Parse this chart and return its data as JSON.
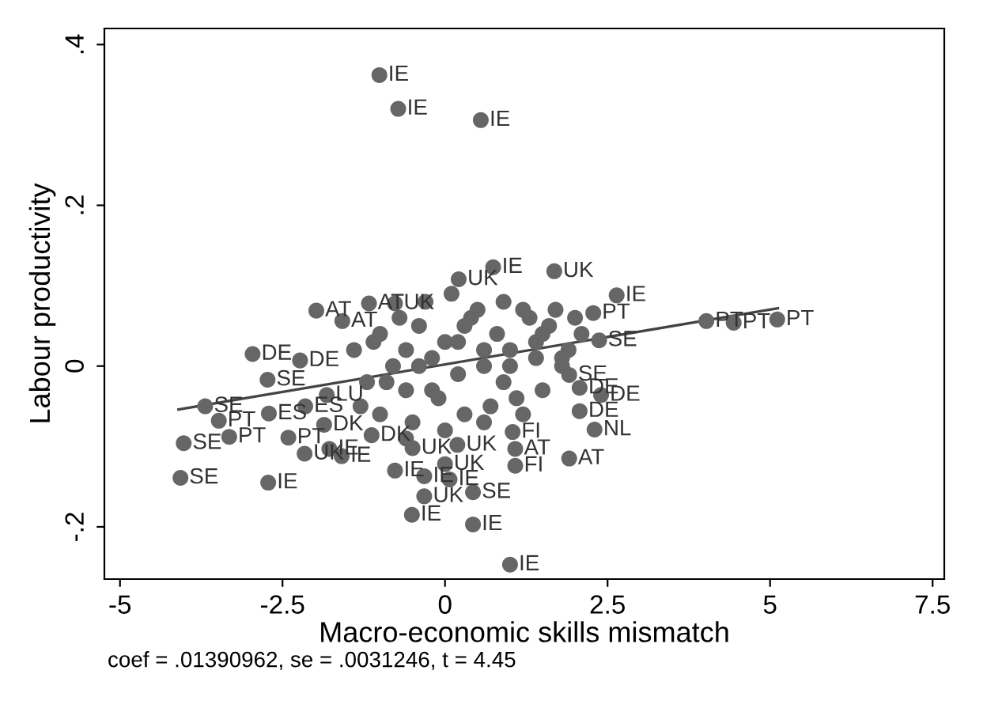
{
  "chart_data": {
    "type": "scatter",
    "xlabel": "Macro-economic skills mismatch",
    "ylabel": "Labour productivity",
    "annotations": [
      "coef = .01390962, se = .0031246, t = 4.45"
    ],
    "xlim": [
      -5.24,
      7.68
    ],
    "ylim": [
      -0.265,
      0.42
    ],
    "xticks": [
      -5,
      -2.5,
      0,
      2.5,
      5,
      7.5
    ],
    "yticks": [
      {
        "value": -0.2,
        "label": "-.2"
      },
      {
        "value": 0,
        "label": "0"
      },
      {
        "value": 0.2,
        "label": ".2"
      },
      {
        "value": 0.4,
        "label": ".4"
      }
    ],
    "grid": false,
    "legend": false,
    "series": [
      {
        "color": "#666666",
        "marker": "circle",
        "x": [
          -1.01,
          -0.72,
          0.55,
          4.02,
          4.44,
          5.11,
          2.37,
          2.64,
          1.68,
          0.74,
          2.28,
          2.07,
          2.07,
          2.3,
          2.4,
          1.91,
          -4.02,
          -4.07,
          -2.72,
          -2.41,
          -2.16,
          -1.78,
          -1.59,
          -1.13,
          -0.5,
          -0.77,
          -0.32,
          0.07,
          0,
          0.19,
          0.43,
          -0.32,
          -0.51,
          0.43,
          1.0,
          1.91,
          1.08,
          1.08,
          1.04,
          -2.96,
          -2.23,
          -2.73,
          -3.69,
          -3.48,
          -3.32,
          -2.71,
          -1.98,
          -1.58,
          -1.17,
          -0.77,
          0.21,
          -1.86,
          -1.82,
          -2.15,
          -1.4,
          -1.2,
          -1.0,
          -0.8,
          -0.6,
          -0.4,
          -0.2,
          0.0,
          0.2,
          0.4,
          0.6,
          0.8,
          1.0,
          1.2,
          1.4,
          1.6,
          1.8,
          2.0,
          -1.3,
          -1.0,
          -0.7,
          -0.5,
          -0.3,
          -0.1,
          0.1,
          0.3,
          0.5,
          0.7,
          0.9,
          1.1,
          1.3,
          1.5,
          1.7,
          1.9,
          2.1,
          -0.9,
          -0.6,
          -0.2,
          0.2,
          0.6,
          1.0,
          1.4,
          1.8,
          -1.1,
          -0.4,
          0.3,
          0.9,
          1.5,
          -0.6,
          0.0,
          0.6,
          1.2
        ],
        "values": [
          0.362,
          0.32,
          0.306,
          0.056,
          0.054,
          0.058,
          0.032,
          0.088,
          0.118,
          0.123,
          0.066,
          -0.027,
          -0.056,
          -0.079,
          -0.036,
          -0.011,
          -0.096,
          -0.139,
          -0.145,
          -0.089,
          -0.109,
          -0.103,
          -0.112,
          -0.086,
          -0.102,
          -0.13,
          -0.137,
          -0.141,
          -0.122,
          -0.098,
          -0.157,
          -0.162,
          -0.185,
          -0.197,
          -0.247,
          -0.115,
          -0.103,
          -0.124,
          -0.082,
          0.015,
          0.007,
          -0.017,
          -0.05,
          -0.068,
          -0.088,
          -0.059,
          0.069,
          0.056,
          0.078,
          0.078,
          0.108,
          -0.073,
          -0.036,
          -0.05,
          0.02,
          -0.02,
          0.04,
          0.0,
          -0.03,
          0.05,
          0.01,
          0.03,
          -0.01,
          0.06,
          0.02,
          0.04,
          0.0,
          0.07,
          0.03,
          0.05,
          0.01,
          0.06,
          -0.05,
          -0.06,
          0.06,
          -0.07,
          0.08,
          -0.04,
          0.09,
          -0.06,
          0.07,
          -0.05,
          0.08,
          -0.04,
          0.06,
          -0.03,
          0.07,
          0.02,
          0.04,
          -0.02,
          0.02,
          -0.03,
          0.03,
          0.0,
          0.02,
          0.01,
          0.0,
          0.03,
          0.0,
          0.05,
          -0.02,
          0.04,
          -0.09,
          -0.08,
          -0.07,
          -0.06
        ],
        "value_labels": [
          "IE",
          "IE",
          "IE",
          "PT",
          "PT",
          "PT",
          "SE",
          "IE",
          "UK",
          "IE",
          "PT",
          "DE",
          "DE",
          "NL",
          "DE",
          "SE",
          "SE",
          "SE",
          "IE",
          "PT",
          "UK",
          "IE",
          "IE",
          "DK",
          "UK",
          "IE",
          "IE",
          "IE",
          "UK",
          "UK",
          "SE",
          "UK",
          "IE",
          "IE",
          "IE",
          "AT",
          "AT",
          "FI",
          "FI",
          "DE",
          "DE",
          "SE",
          "SE",
          "PT",
          "PT",
          "ES",
          "AT",
          "AT",
          "AT",
          "UK",
          "UK",
          "DK",
          "LU",
          "ES",
          null,
          null,
          null,
          null,
          null,
          null,
          null,
          null,
          null,
          null,
          null,
          null,
          null,
          null,
          null,
          null,
          null,
          null,
          null,
          null,
          null,
          null,
          null,
          null,
          null,
          null,
          null,
          null,
          null,
          null,
          null,
          null,
          null,
          null,
          null,
          null,
          null,
          null,
          null,
          null,
          null,
          null,
          null,
          null,
          null,
          null,
          null,
          null,
          null,
          null,
          null,
          null
        ]
      },
      {
        "type": "line",
        "color": "#444444",
        "x": [
          -4.1,
          5.12
        ],
        "values": [
          -0.054,
          0.072
        ]
      }
    ]
  }
}
